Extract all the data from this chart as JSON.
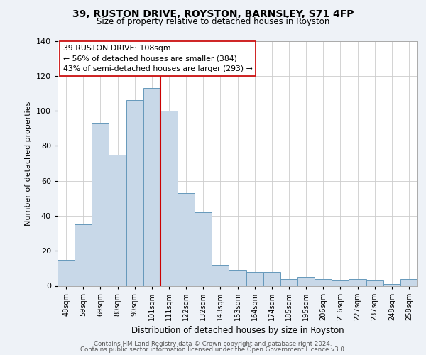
{
  "title": "39, RUSTON DRIVE, ROYSTON, BARNSLEY, S71 4FP",
  "subtitle": "Size of property relative to detached houses in Royston",
  "xlabel": "Distribution of detached houses by size in Royston",
  "ylabel": "Number of detached properties",
  "categories": [
    "48sqm",
    "59sqm",
    "69sqm",
    "80sqm",
    "90sqm",
    "101sqm",
    "111sqm",
    "122sqm",
    "132sqm",
    "143sqm",
    "153sqm",
    "164sqm",
    "174sqm",
    "185sqm",
    "195sqm",
    "206sqm",
    "216sqm",
    "227sqm",
    "237sqm",
    "248sqm",
    "258sqm"
  ],
  "values": [
    15,
    35,
    93,
    75,
    106,
    113,
    100,
    53,
    42,
    12,
    9,
    8,
    8,
    4,
    5,
    4,
    3,
    4,
    3,
    1,
    4
  ],
  "bar_color": "#c8d8e8",
  "bar_edge_color": "#6699bb",
  "marker_bin_index": 6,
  "marker_line_color": "#cc0000",
  "annotation_text": "39 RUSTON DRIVE: 108sqm\n← 56% of detached houses are smaller (384)\n43% of semi-detached houses are larger (293) →",
  "ylim": [
    0,
    140
  ],
  "yticks": [
    0,
    20,
    40,
    60,
    80,
    100,
    120,
    140
  ],
  "footer_line1": "Contains HM Land Registry data © Crown copyright and database right 2024.",
  "footer_line2": "Contains public sector information licensed under the Open Government Licence v3.0.",
  "background_color": "#eef2f7",
  "plot_background_color": "#ffffff",
  "grid_color": "#cccccc"
}
